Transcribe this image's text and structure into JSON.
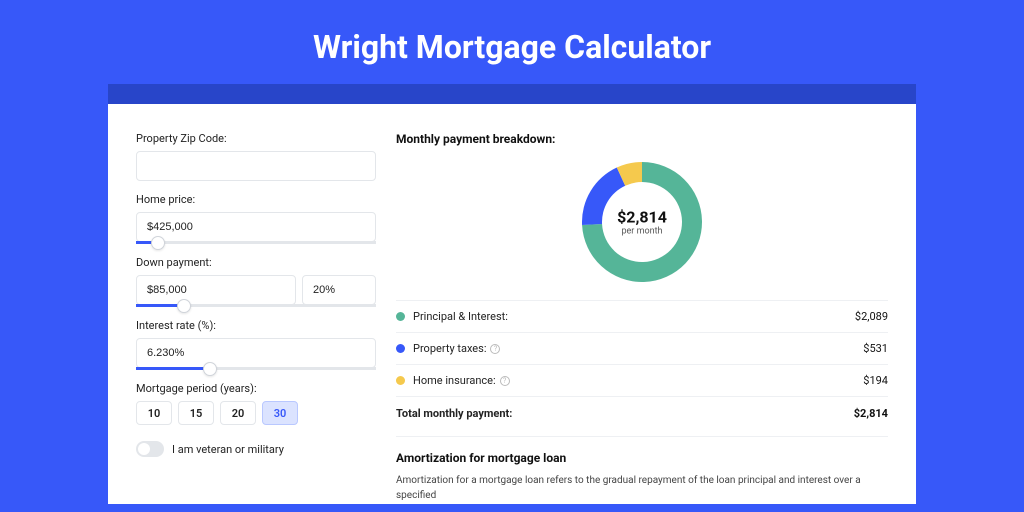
{
  "page": {
    "title": "Wright Mortgage Calculator",
    "background_color": "#3758f9",
    "header_band_color": "#2845c9",
    "card_background": "#ffffff"
  },
  "form": {
    "zip": {
      "label": "Property Zip Code:",
      "value": ""
    },
    "home_price": {
      "label": "Home price:",
      "value": "$425,000",
      "slider_percent": 9
    },
    "down_payment": {
      "label": "Down payment:",
      "value": "$85,000",
      "percent_value": "20%",
      "slider_percent": 20
    },
    "interest_rate": {
      "label": "Interest rate (%):",
      "value": "6.230%",
      "slider_percent": 31
    },
    "mortgage_period": {
      "label": "Mortgage period (years):",
      "options": [
        "10",
        "15",
        "20",
        "30"
      ],
      "selected_index": 3
    },
    "veteran": {
      "label": "I am veteran or military",
      "checked": false
    }
  },
  "breakdown": {
    "title": "Monthly payment breakdown:",
    "center_value": "$2,814",
    "center_sub": "per month",
    "donut": {
      "size": 120,
      "thickness": 20,
      "slices": [
        {
          "label": "Principal & Interest:",
          "value": "$2,089",
          "color": "#55b598",
          "percent": 74.2,
          "info": false
        },
        {
          "label": "Property taxes:",
          "value": "$531",
          "color": "#3758f9",
          "percent": 18.9,
          "info": true
        },
        {
          "label": "Home insurance:",
          "value": "$194",
          "color": "#f5c94d",
          "percent": 6.9,
          "info": true
        }
      ]
    },
    "total": {
      "label": "Total monthly payment:",
      "value": "$2,814"
    }
  },
  "amortization": {
    "title": "Amortization for mortgage loan",
    "text": "Amortization for a mortgage loan refers to the gradual repayment of the loan principal and interest over a specified"
  }
}
